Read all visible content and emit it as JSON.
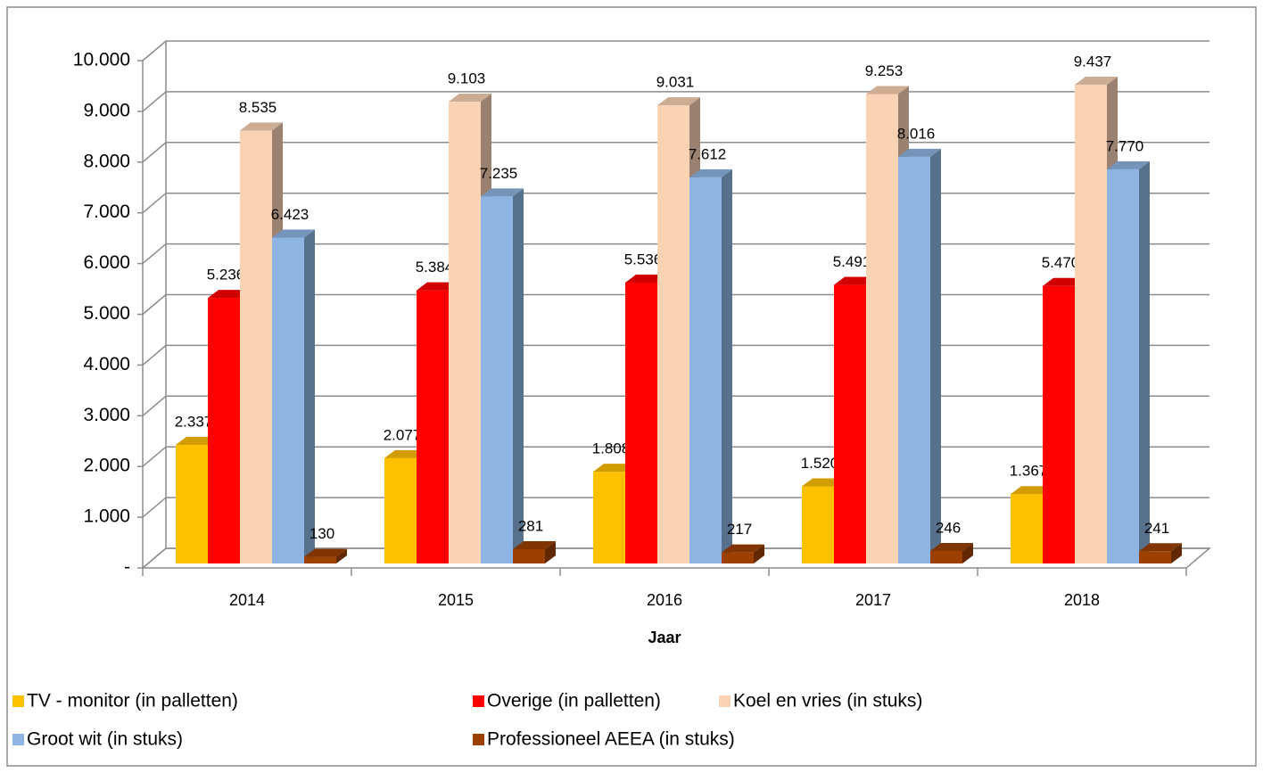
{
  "chart_data": {
    "type": "bar3d",
    "x_label": "Jaar",
    "categories": [
      "2014",
      "2015",
      "2016",
      "2017",
      "2018"
    ],
    "series": [
      {
        "name": "TV - monitor (in palletten)",
        "color": "#FFC000",
        "values": [
          2337,
          2077,
          1808,
          1520,
          1367
        ],
        "value_labels": [
          "2.337",
          "2.077",
          "1.808",
          "1.520",
          "1.367"
        ]
      },
      {
        "name": "Overige (in palletten)",
        "color": "#FF0000",
        "values": [
          5236,
          5384,
          5536,
          5491,
          5470
        ],
        "value_labels": [
          "5.236",
          "5.384",
          "5.536",
          "5.491",
          "5.470"
        ]
      },
      {
        "name": "Koel en vries (in stuks)",
        "color": "#FAD2B4",
        "values": [
          8535,
          9103,
          9031,
          9253,
          9437
        ],
        "value_labels": [
          "8.535",
          "9.103",
          "9.031",
          "9.253",
          "9.437"
        ]
      },
      {
        "name": "Groot wit (in stuks)",
        "color": "#8DB4E2",
        "values": [
          6423,
          7235,
          7612,
          8016,
          7770
        ],
        "value_labels": [
          "6.423",
          "7.235",
          "7.612",
          "8.016",
          "7.770"
        ]
      },
      {
        "name": "Professioneel AEEA (in stuks)",
        "color": "#9C4000",
        "values": [
          130,
          281,
          217,
          246,
          241
        ]
      }
    ],
    "ylim": [
      0,
      10000
    ],
    "yticks": [
      {
        "value": 0,
        "label": "-"
      },
      {
        "value": 1000,
        "label": "1.000"
      },
      {
        "value": 2000,
        "label": "2.000"
      },
      {
        "value": 3000,
        "label": "3.000"
      },
      {
        "value": 4000,
        "label": "4.000"
      },
      {
        "value": 5000,
        "label": "5.000"
      },
      {
        "value": 6000,
        "label": "6.000"
      },
      {
        "value": 7000,
        "label": "7.000"
      },
      {
        "value": 8000,
        "label": "8.000"
      },
      {
        "value": 9000,
        "label": "9.000"
      },
      {
        "value": 10000,
        "label": "10.000"
      }
    ],
    "grid": true,
    "legend": "bottom"
  }
}
